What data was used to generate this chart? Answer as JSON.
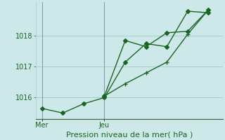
{
  "background_color": "#cce8e8",
  "grid_color": "#aacccc",
  "line_color": "#1a6620",
  "title": "Pression niveau de la mer( hPa )",
  "xlabel_mer": "Mer",
  "xlabel_jeu": "Jeu",
  "ylim": [
    1015.3,
    1019.1
  ],
  "yticks": [
    1016,
    1017,
    1018
  ],
  "line1_x": [
    0,
    1,
    2,
    3,
    4,
    5,
    6,
    7,
    8
  ],
  "line1_y": [
    1015.65,
    1015.5,
    1015.8,
    1016.0,
    1017.15,
    1017.75,
    1017.65,
    1018.8,
    1018.75
  ],
  "line2_x": [
    3,
    4,
    5,
    6,
    7,
    8
  ],
  "line2_y": [
    1016.05,
    1017.85,
    1017.65,
    1018.1,
    1018.15,
    1018.85
  ],
  "line3_x": [
    3,
    4,
    5,
    6,
    7,
    8
  ],
  "line3_y": [
    1016.05,
    1016.45,
    1016.8,
    1017.15,
    1018.05,
    1018.85
  ],
  "mer_x": 0,
  "jeu_x": 3,
  "xlim": [
    -0.3,
    8.7
  ],
  "marker_size": 3,
  "line_width": 1.0,
  "tick_fontsize": 7,
  "xlabel_fontsize": 8,
  "vline_color": "#8899aa"
}
